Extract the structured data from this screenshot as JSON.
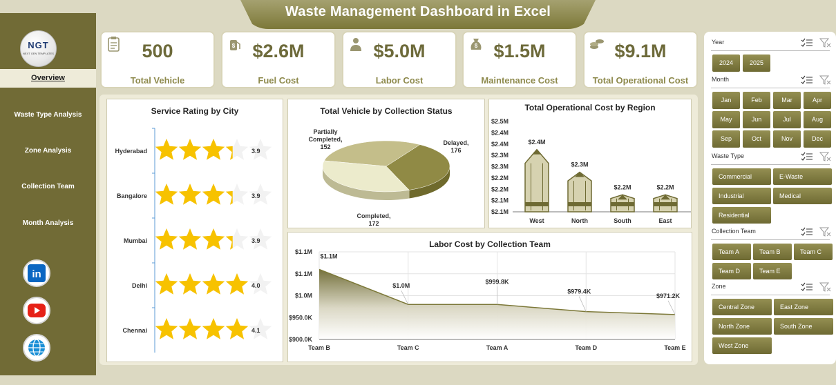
{
  "title": "Waste Management Dashboard in Excel",
  "logo": {
    "text": "NGT",
    "subtext": "NEXT GEN TEMPLATES"
  },
  "nav": {
    "active": "Overview",
    "items": [
      "Waste Type Analysis",
      "Zone Analysis",
      "Collection Team",
      "Month Analysis"
    ]
  },
  "social": [
    "linkedin-icon",
    "youtube-icon",
    "globe-icon"
  ],
  "kpis": [
    {
      "value": "500",
      "label": "Total Vehicle",
      "icon": "clipboard-icon"
    },
    {
      "value": "$2.6M",
      "label": "Fuel Cost",
      "icon": "fuel-icon"
    },
    {
      "value": "$5.0M",
      "label": "Labor Cost",
      "icon": "labor-icon"
    },
    {
      "value": "$1.5M",
      "label": "Maintenance Cost",
      "icon": "money-bag-icon"
    },
    {
      "value": "$9.1M",
      "label": "Total Operational Cost",
      "icon": "coins-icon"
    }
  ],
  "colors": {
    "accent": "#716b36",
    "star": "#f7c200",
    "bar_fill": "#d6d2b0",
    "line": "#7c7838"
  },
  "charts": {
    "rating": {
      "title": "Service Rating by City"
    },
    "pie": {
      "title": "Total Vehicle by Collection Status"
    },
    "region": {
      "title": "Total Operational Cost by Region"
    },
    "labor": {
      "title": "Labor Cost by Collection Team"
    }
  },
  "chart_data": [
    {
      "type": "bar",
      "title": "Service Rating by City",
      "categories": [
        "Hyderabad",
        "Bangalore",
        "Mumbai",
        "Delhi",
        "Chennai"
      ],
      "values": [
        3.9,
        3.9,
        3.9,
        4.0,
        4.1
      ],
      "value_labels": [
        "3.9",
        "3.9",
        "3.9",
        "4.0",
        "4.1"
      ],
      "max_stars": 5
    },
    {
      "type": "pie",
      "title": "Total Vehicle by Collection Status",
      "slices": [
        {
          "name": "Partially Completed",
          "value": 152,
          "label": "Partially Completed, 152"
        },
        {
          "name": "Delayed",
          "value": 176,
          "label": "Delayed, 176"
        },
        {
          "name": "Completed",
          "value": 172,
          "label": "Completed, 172"
        }
      ]
    },
    {
      "type": "bar",
      "title": "Total Operational Cost by Region",
      "categories": [
        "West",
        "North",
        "South",
        "East"
      ],
      "values": [
        2.4,
        2.3,
        2.2,
        2.2
      ],
      "value_labels": [
        "$2.4M",
        "$2.3M",
        "$2.2M",
        "$2.2M"
      ],
      "yticks": [
        "$2.5M",
        "$2.4M",
        "$2.4M",
        "$2.3M",
        "$2.3M",
        "$2.2M",
        "$2.2M",
        "$2.1M",
        "$2.1M"
      ],
      "ylim": [
        2.1,
        2.5
      ]
    },
    {
      "type": "area",
      "title": "Labor Cost by Collection Team",
      "categories": [
        "Team B",
        "Team C",
        "Team A",
        "Team D",
        "Team E"
      ],
      "values": [
        1100,
        1000,
        999.8,
        979.4,
        971.2
      ],
      "value_labels": [
        "$1.1M",
        "$1.0M",
        "$999.8K",
        "$979.4K",
        "$971.2K"
      ],
      "yticks": [
        "$1.1M",
        "$1.1M",
        "$1.0M",
        "$950.0K",
        "$900.0K"
      ],
      "ylim": [
        900,
        1150
      ]
    }
  ],
  "slicers": [
    {
      "name": "Year",
      "items": [
        "2024",
        "2025"
      ]
    },
    {
      "name": "Month",
      "items": [
        "Jan",
        "Feb",
        "Mar",
        "Apr",
        "May",
        "Jun",
        "Jul",
        "Aug",
        "Sep",
        "Oct",
        "Nov",
        "Dec"
      ]
    },
    {
      "name": "Waste Type",
      "items": [
        "Commercial",
        "E-Waste",
        "Industrial",
        "Medical",
        "Residential"
      ]
    },
    {
      "name": "Collection Team",
      "items": [
        "Team A",
        "Team B",
        "Team C",
        "Team D",
        "Team E"
      ]
    },
    {
      "name": "Zone",
      "items": [
        "Central Zone",
        "East Zone",
        "North Zone",
        "South Zone",
        "West Zone"
      ]
    }
  ]
}
